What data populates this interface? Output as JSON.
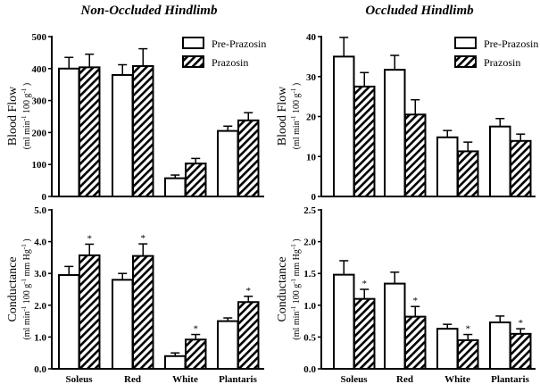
{
  "chart_data": [
    {
      "type": "bar",
      "title": "Non-Occluded Hindlimb",
      "ylabel": "Blood Flow",
      "ylabel_units": "(ml min-1 100 g-1)",
      "categories": [
        "Soleus",
        "Red",
        "White",
        "Plantaris"
      ],
      "ylim": [
        0,
        500
      ],
      "yticks": [
        "0",
        "100",
        "200",
        "300",
        "400",
        "500"
      ],
      "legend": [
        "Pre-Prazosin",
        "Prazosin"
      ],
      "legend_position": "top-right",
      "series": [
        {
          "name": "Pre-Prazosin",
          "values": [
            400,
            380,
            57,
            205
          ],
          "error_top": [
            435,
            412,
            67,
            220
          ],
          "sig": [
            false,
            false,
            false,
            false
          ]
        },
        {
          "name": "Prazosin",
          "values": [
            404,
            408,
            103,
            238
          ],
          "error_top": [
            445,
            462,
            119,
            262
          ],
          "sig": [
            false,
            false,
            false,
            false
          ]
        }
      ]
    },
    {
      "type": "bar",
      "title": "Occluded Hindlimb",
      "ylabel": "Blood Flow",
      "ylabel_units": "(ml min-1 100 g-1)",
      "categories": [
        "Soleus",
        "Red",
        "White",
        "Plantaris"
      ],
      "ylim": [
        0,
        40
      ],
      "yticks": [
        "0",
        "10",
        "20",
        "30",
        "40"
      ],
      "legend": [
        "Pre-Prazosin",
        "Prazosin"
      ],
      "legend_position": "top-right",
      "series": [
        {
          "name": "Pre-Prazosin",
          "values": [
            35,
            31.7,
            14.8,
            17.5
          ],
          "error_top": [
            39.8,
            35.3,
            16.5,
            19.5
          ],
          "sig": [
            false,
            false,
            false,
            false
          ]
        },
        {
          "name": "Prazosin",
          "values": [
            27.5,
            20.5,
            11.3,
            13.9
          ],
          "error_top": [
            31,
            24.2,
            13.6,
            15.6
          ],
          "sig": [
            false,
            false,
            false,
            false
          ]
        }
      ]
    },
    {
      "type": "bar",
      "title": "",
      "ylabel": "Conductance",
      "ylabel_units": "(ml min-1 100 g-1 mm Hg-1)",
      "categories": [
        "Soleus",
        "Red",
        "White",
        "Plantaris"
      ],
      "ylim": [
        0,
        5
      ],
      "yticks": [
        "0.0",
        "1.0",
        "2.0",
        "3.0",
        "4.0",
        "5.0"
      ],
      "legend": [],
      "series": [
        {
          "name": "Pre-Prazosin",
          "values": [
            2.95,
            2.8,
            0.4,
            1.5
          ],
          "error_top": [
            3.22,
            3.0,
            0.5,
            1.6
          ],
          "sig": [
            false,
            false,
            false,
            false
          ]
        },
        {
          "name": "Prazosin",
          "values": [
            3.57,
            3.55,
            0.92,
            2.1
          ],
          "error_top": [
            3.92,
            3.93,
            1.08,
            2.28
          ],
          "sig": [
            true,
            true,
            true,
            true
          ]
        }
      ]
    },
    {
      "type": "bar",
      "title": "",
      "ylabel": "Conductance",
      "ylabel_units": "(ml min-1 100 g-1 mm Hg-1)",
      "categories": [
        "Soleus",
        "Red",
        "White",
        "Plantaris"
      ],
      "ylim": [
        0,
        2.5
      ],
      "yticks": [
        "0.0",
        "0.5",
        "1.0",
        "1.5",
        "2.0",
        "2.5"
      ],
      "legend": [],
      "series": [
        {
          "name": "Pre-Prazosin",
          "values": [
            1.48,
            1.34,
            0.63,
            0.73
          ],
          "error_top": [
            1.7,
            1.52,
            0.7,
            0.83
          ],
          "sig": [
            false,
            false,
            false,
            false
          ]
        },
        {
          "name": "Prazosin",
          "values": [
            1.1,
            0.82,
            0.45,
            0.55
          ],
          "error_top": [
            1.25,
            0.98,
            0.54,
            0.63
          ],
          "sig": [
            true,
            true,
            true,
            true
          ]
        }
      ]
    }
  ],
  "sig_marker": "*"
}
